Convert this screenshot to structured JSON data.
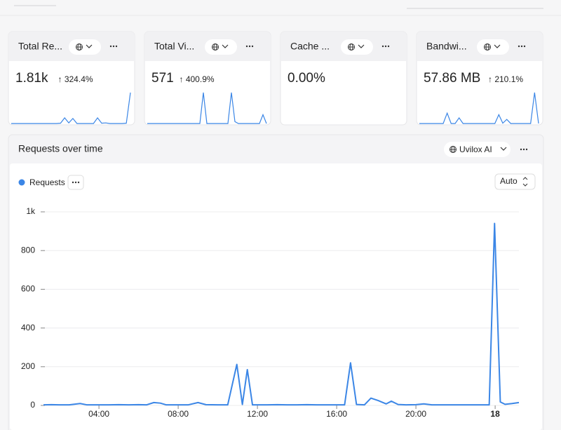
{
  "cards": [
    {
      "title": "Total Re...",
      "value": "1.81k",
      "change": "↑ 324.4%",
      "spark": [
        2,
        2,
        2,
        2,
        2,
        2,
        2,
        2,
        2,
        2,
        2,
        2,
        3,
        20,
        4,
        18,
        2,
        2,
        2,
        2,
        2,
        20,
        3,
        4,
        2,
        2,
        2,
        2,
        3,
        100
      ]
    },
    {
      "title": "Total Vi...",
      "value": "571",
      "change": "↑ 400.9%",
      "spark": [
        2,
        2,
        2,
        2,
        2,
        2,
        2,
        2,
        2,
        2,
        2,
        2,
        2,
        2,
        2,
        2,
        100,
        2,
        2,
        2,
        2,
        2,
        2,
        2,
        100,
        8,
        2,
        2,
        2,
        2,
        2,
        2,
        2,
        30,
        2
      ]
    },
    {
      "title": "Cache ...",
      "value": "0.00%",
      "spark": []
    },
    {
      "title": "Bandwi...",
      "value": "57.86 MB",
      "change": "↑ 210.1%",
      "spark": [
        2,
        2,
        2,
        2,
        2,
        2,
        2,
        35,
        2,
        2,
        20,
        2,
        2,
        2,
        2,
        2,
        2,
        2,
        2,
        2,
        30,
        3,
        15,
        2,
        2,
        2,
        2,
        2,
        2,
        100,
        2
      ]
    }
  ],
  "spark_ylim": [
    0,
    100
  ],
  "panel": {
    "title": "Requests over time",
    "filter": "Uvilox AI",
    "interval": "Auto"
  },
  "chart_data": {
    "type": "line",
    "x": [
      1.2,
      1.6,
      2,
      2.5,
      3.05,
      3.4,
      4,
      4.5,
      5,
      5.5,
      6,
      6.4,
      6.77,
      7.1,
      7.4,
      8,
      8.5,
      9.0,
      9.4,
      10,
      10.5,
      10.96,
      11.24,
      11.49,
      11.75,
      12,
      12.5,
      13,
      13.5,
      14,
      14.5,
      15,
      15.5,
      16,
      16.4,
      16.7,
      17.0,
      17.4,
      17.73,
      18.1,
      18.5,
      18.76,
      19.1,
      19.5,
      20,
      20.4,
      20.8,
      21.3,
      21.8,
      22.3,
      22.8,
      23.3,
      23.7,
      23.97,
      24.26,
      24.5,
      24.86,
      25.2
    ],
    "series": [
      {
        "name": "Requests",
        "color": "#3b86e6",
        "values": [
          3,
          4,
          3,
          3,
          10,
          3,
          3,
          3,
          4,
          3,
          4,
          3,
          15,
          12,
          3,
          3,
          3,
          15,
          4,
          3,
          3,
          212,
          5,
          185,
          3,
          3,
          3,
          4,
          3,
          3,
          4,
          3,
          3,
          3,
          3,
          220,
          5,
          3,
          38,
          25,
          8,
          22,
          5,
          3,
          4,
          8,
          3,
          3,
          3,
          3,
          3,
          3,
          3,
          940,
          18,
          6,
          10,
          15
        ]
      }
    ],
    "xlim": [
      1.2,
      25.2
    ],
    "xticks": [
      {
        "value": 4,
        "label": "04:00"
      },
      {
        "value": 8,
        "label": "08:00"
      },
      {
        "value": 12,
        "label": "12:00"
      },
      {
        "value": 16,
        "label": "16:00"
      },
      {
        "value": 20,
        "label": "20:00"
      },
      {
        "value": 24,
        "label": "18"
      }
    ],
    "ylim": [
      0,
      1000
    ],
    "yticks": [
      0,
      200,
      400,
      600,
      800,
      {
        "value": 1000,
        "label": "1k"
      }
    ],
    "grid": true
  }
}
